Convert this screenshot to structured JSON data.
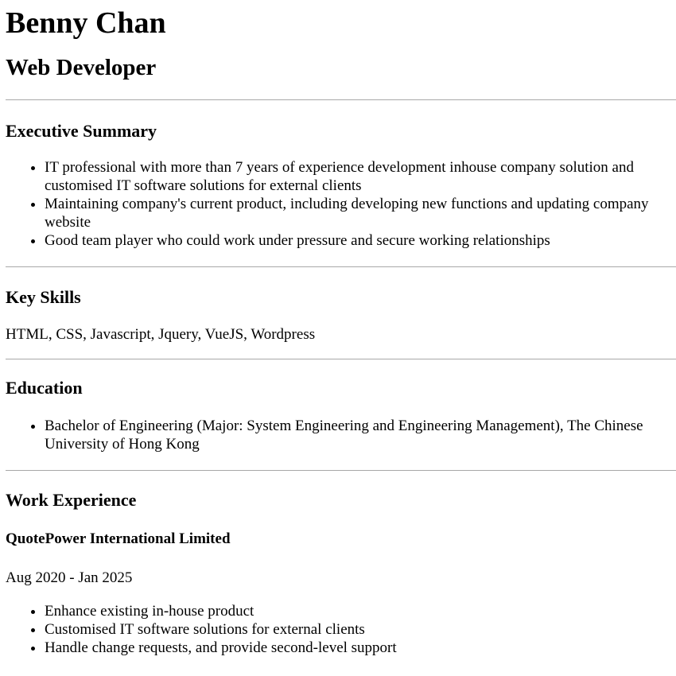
{
  "header": {
    "name": "Benny Chan",
    "title": "Web Developer"
  },
  "summary": {
    "heading": "Executive Summary",
    "items": [
      "IT professional with more than 7 years of experience development inhouse company solution and customised IT software solutions for external clients",
      "Maintaining company's current product, including developing new functions and updating company website",
      "Good team player who could work under pressure and secure working relationships"
    ]
  },
  "skills": {
    "heading": "Key Skills",
    "text": "HTML, CSS, Javascript, Jquery, VueJS, Wordpress"
  },
  "education": {
    "heading": "Education",
    "items": [
      "Bachelor of Engineering (Major: System Engineering and Engineering Management), The Chinese University of Hong Kong"
    ]
  },
  "experience": {
    "heading": "Work Experience",
    "jobs": [
      {
        "company": "QuotePower International Limited",
        "period": "Aug 2020 - Jan 2025",
        "items": [
          "Enhance existing in-house product",
          "Customised IT software solutions for external clients",
          "Handle change requests, and provide second-level support"
        ]
      }
    ]
  }
}
